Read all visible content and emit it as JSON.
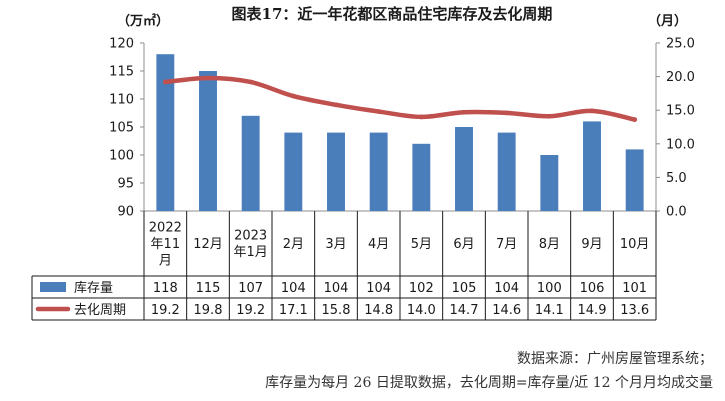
{
  "chart_data": {
    "type": "bar+line",
    "title": "图表17：近一年花都区商品住宅库存及去化周期",
    "left_unit": "（万㎡）",
    "right_unit": "（月）",
    "categories": [
      "2022年11月",
      "12月",
      "2023年1月",
      "2月",
      "3月",
      "4月",
      "5月",
      "6月",
      "7月",
      "8月",
      "9月",
      "10月"
    ],
    "category_lines": [
      [
        "2022",
        "年11",
        "月"
      ],
      [
        "12月"
      ],
      [
        "2023",
        "年1月"
      ],
      [
        "2月"
      ],
      [
        "3月"
      ],
      [
        "4月"
      ],
      [
        "5月"
      ],
      [
        "6月"
      ],
      [
        "7月"
      ],
      [
        "8月"
      ],
      [
        "9月"
      ],
      [
        "10月"
      ]
    ],
    "series": [
      {
        "name": "库存量",
        "type": "bar",
        "axis": "left",
        "color": "#4a7ebb",
        "values": [
          118,
          115,
          107,
          104,
          104,
          104,
          102,
          105,
          104,
          100,
          106,
          101
        ]
      },
      {
        "name": "去化周期",
        "type": "line",
        "axis": "right",
        "color": "#c0504d",
        "values": [
          19.2,
          19.8,
          19.2,
          17.1,
          15.8,
          14.8,
          14.0,
          14.7,
          14.6,
          14.1,
          14.9,
          13.6
        ]
      }
    ],
    "table_values": [
      [
        "118",
        "115",
        "107",
        "104",
        "104",
        "104",
        "102",
        "105",
        "104",
        "100",
        "106",
        "101"
      ],
      [
        "19.2",
        "19.8",
        "19.2",
        "17.1",
        "15.8",
        "14.8",
        "14.0",
        "14.7",
        "14.6",
        "14.1",
        "14.9",
        "13.6"
      ]
    ],
    "y_left": {
      "min": 90,
      "max": 120,
      "step": 5,
      "ticks": [
        "90",
        "95",
        "100",
        "105",
        "110",
        "115",
        "120"
      ]
    },
    "y_right": {
      "min": 0,
      "max": 25,
      "step": 5,
      "ticks": [
        "0.0",
        "5.0",
        "10.0",
        "15.0",
        "20.0",
        "25.0"
      ]
    },
    "grid": false,
    "legend": "data-table"
  },
  "notes": {
    "source": "数据来源：广州房屋管理系统；",
    "definition": "库存量为每月 26 日提取数据，去化周期=库存量/近 12 个月月均成交量"
  }
}
